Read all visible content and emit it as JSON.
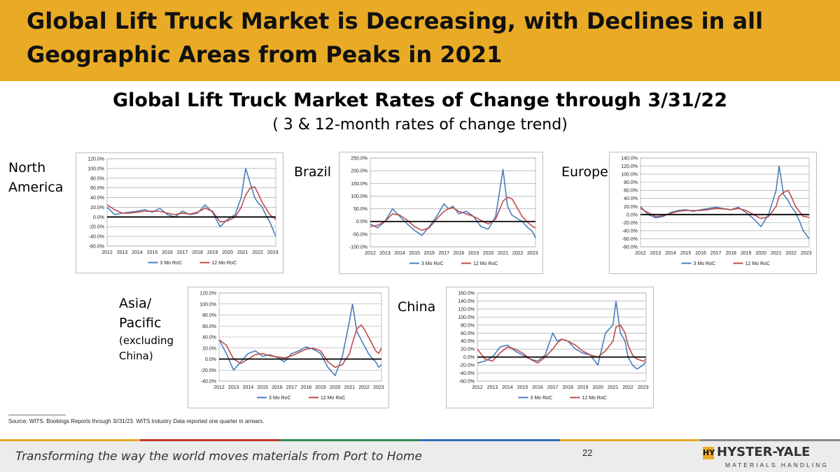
{
  "header": {
    "title": "Global Lift Truck Market is Decreasing, with Declines in all Geographic Areas from Peaks in 2021"
  },
  "subtitle": "Global Lift Truck Market Rates of Change through 3/31/22",
  "subtitle2": "( 3 & 12-month rates of change trend)",
  "regions": {
    "north_america": "North America",
    "brazil": "Brazil",
    "europe": "Europe",
    "asia_line1": "Asia/",
    "asia_line2": "Pacific",
    "asia_line3": "(excluding",
    "asia_line4": "China)",
    "china": "China"
  },
  "source": "Source: WITS. Bookings Reports through 3//31/23. WITS Industry Data reported one quarter in arrears.",
  "footer": {
    "tagline": "Transforming the way the world moves materials from Port to Home",
    "page_number": "22",
    "logo_mark": "HY",
    "logo_name": "HYSTER-YALE",
    "logo_sub": "MATERIALS HANDLING"
  },
  "colors": {
    "header_bg": "#E9AB26",
    "series_3mo": "#4A7EBB",
    "series_12mo": "#BE4B48",
    "zero_line": "#000000",
    "footer_stripe": [
      "#E9AB26",
      "#C0392B",
      "#2E8B57",
      "#2F6DB5",
      "#E9AB26",
      "#888888"
    ]
  },
  "chart_data": [
    {
      "id": "north_america",
      "type": "line",
      "x": [
        2012,
        2012.5,
        2013,
        2013.5,
        2014,
        2014.5,
        2015,
        2015.5,
        2016,
        2016.5,
        2017,
        2017.5,
        2018,
        2018.5,
        2019,
        2019.5,
        2020,
        2020.5,
        2020.9,
        2021.2,
        2021.5,
        2021.8,
        2022,
        2022.3,
        2022.6,
        2022.8,
        2023,
        2023.2
      ],
      "series": [
        {
          "name": "3 Mo RoC",
          "values": [
            20,
            5,
            8,
            10,
            12,
            15,
            10,
            18,
            5,
            0,
            12,
            5,
            8,
            25,
            10,
            -20,
            -5,
            5,
            40,
            100,
            70,
            40,
            30,
            20,
            0,
            -10,
            -25,
            -40
          ]
        },
        {
          "name": "12 Mo RoC",
          "values": [
            25,
            15,
            8,
            8,
            10,
            12,
            12,
            12,
            8,
            5,
            8,
            6,
            10,
            18,
            12,
            -10,
            -8,
            0,
            20,
            45,
            60,
            62,
            50,
            30,
            15,
            5,
            0,
            -5
          ]
        }
      ],
      "x_ticks": [
        "2012",
        "2013",
        "2014",
        "2015",
        "2016",
        "2017",
        "2018",
        "2019",
        "2020",
        "2021",
        "2022",
        "2023"
      ],
      "y_ticks": [
        "120.0%",
        "100.0%",
        "80.0%",
        "60.0%",
        "40.0%",
        "20.0%",
        "0.0%",
        "-20.0%",
        "-40.0%",
        "-60.0%"
      ],
      "ylim": [
        -60,
        120
      ],
      "legend": [
        "3 Mo RoC",
        "12 Mo RoC"
      ]
    },
    {
      "id": "brazil",
      "type": "line",
      "x": [
        2012,
        2012.5,
        2013,
        2013.5,
        2014,
        2014.5,
        2015,
        2015.5,
        2016,
        2016.5,
        2017,
        2017.3,
        2017.6,
        2018,
        2018.5,
        2019,
        2019.5,
        2020,
        2020.5,
        2021,
        2021.3,
        2021.6,
        2022,
        2022.3,
        2022.6,
        2022.8,
        2023,
        2023.2
      ],
      "series": [
        {
          "name": "3 Mo RoC",
          "values": [
            -10,
            -25,
            0,
            50,
            20,
            -10,
            -35,
            -55,
            -20,
            20,
            70,
            50,
            60,
            30,
            40,
            20,
            -20,
            -30,
            20,
            205,
            60,
            25,
            10,
            0,
            -20,
            -30,
            -40,
            -65
          ]
        },
        {
          "name": "12 Mo RoC",
          "values": [
            -20,
            -15,
            0,
            30,
            25,
            5,
            -20,
            -35,
            -25,
            10,
            40,
            50,
            55,
            40,
            30,
            20,
            5,
            -10,
            10,
            80,
            95,
            90,
            50,
            20,
            0,
            -10,
            -20,
            -25
          ]
        }
      ],
      "x_ticks": [
        "2012",
        "2013",
        "2014",
        "2015",
        "2016",
        "2017",
        "2018",
        "2019",
        "2020",
        "2021",
        "2022",
        "2023"
      ],
      "y_ticks": [
        "250.0%",
        "200.0%",
        "150.0%",
        "100.0%",
        "50.0%",
        "0.0%",
        "-50.0%",
        "-100.0%"
      ],
      "ylim": [
        -100,
        250
      ],
      "legend": [
        "3 Mo RoC",
        "12 Mo RoC"
      ]
    },
    {
      "id": "europe",
      "type": "line",
      "x": [
        2012,
        2012.5,
        2013,
        2013.5,
        2014,
        2014.5,
        2015,
        2015.5,
        2016,
        2016.5,
        2017,
        2017.5,
        2018,
        2018.5,
        2019,
        2019.5,
        2020,
        2020.5,
        2021,
        2021.2,
        2021.5,
        2021.8,
        2022,
        2022.3,
        2022.6,
        2022.8,
        2023,
        2023.2
      ],
      "series": [
        {
          "name": "3 Mo RoC",
          "values": [
            20,
            0,
            -8,
            -5,
            5,
            10,
            12,
            8,
            12,
            15,
            18,
            15,
            12,
            18,
            5,
            -10,
            -30,
            0,
            60,
            120,
            50,
            35,
            20,
            5,
            -20,
            -40,
            -50,
            -60
          ]
        },
        {
          "name": "12 Mo RoC",
          "values": [
            15,
            5,
            -5,
            -3,
            3,
            8,
            10,
            10,
            10,
            12,
            15,
            14,
            12,
            15,
            10,
            0,
            -10,
            -5,
            20,
            45,
            55,
            60,
            45,
            20,
            5,
            -5,
            -5,
            -8
          ]
        }
      ],
      "x_ticks": [
        "2012",
        "2013",
        "2014",
        "2015",
        "2016",
        "2017",
        "2018",
        "2019",
        "2020",
        "2021",
        "2022",
        "2023"
      ],
      "y_ticks": [
        "140.0%",
        "120.0%",
        "100.0%",
        "80.0%",
        "60.0%",
        "40.0%",
        "20.0%",
        "0.0%",
        "-20.0%",
        "-40.0%",
        "-60.0%",
        "-80.0%"
      ],
      "ylim": [
        -80,
        140
      ],
      "legend": [
        "3 Mo RoC",
        "12 Mo RoC"
      ]
    },
    {
      "id": "asia_pacific",
      "type": "line",
      "x": [
        2012,
        2012.5,
        2013,
        2013.5,
        2014,
        2014.5,
        2015,
        2015.5,
        2016,
        2016.5,
        2017,
        2017.5,
        2018,
        2018.5,
        2019,
        2019.5,
        2020,
        2020.5,
        2021,
        2021.2,
        2021.5,
        2021.8,
        2022,
        2022.3,
        2022.6,
        2022.8,
        2023,
        2023.2
      ],
      "series": [
        {
          "name": "3 Mo RoC",
          "values": [
            35,
            10,
            -20,
            -5,
            10,
            15,
            5,
            8,
            3,
            -5,
            10,
            15,
            22,
            18,
            10,
            -15,
            -30,
            5,
            70,
            100,
            50,
            35,
            25,
            10,
            0,
            -5,
            -15,
            -10
          ]
        },
        {
          "name": "12 Mo RoC",
          "values": [
            35,
            25,
            0,
            -8,
            0,
            8,
            10,
            6,
            4,
            2,
            6,
            12,
            18,
            20,
            15,
            -5,
            -15,
            -10,
            10,
            30,
            55,
            62,
            55,
            40,
            25,
            15,
            10,
            20
          ]
        }
      ],
      "x_ticks": [
        "2012",
        "2013",
        "2014",
        "2015",
        "2016",
        "2017",
        "2018",
        "2019",
        "2020",
        "2021",
        "2022",
        "2023"
      ],
      "y_ticks": [
        "120.0%",
        "100.0%",
        "80.0%",
        "60.0%",
        "40.0%",
        "20.0%",
        "0.0%",
        "-20.0%",
        "-40.0%"
      ],
      "ylim": [
        -40,
        120
      ],
      "legend": [
        "3 Mo RoC",
        "12 Mo RoC"
      ]
    },
    {
      "id": "china",
      "type": "line",
      "x": [
        2012,
        2012.5,
        2013,
        2013.5,
        2014,
        2014.5,
        2015,
        2015.5,
        2016,
        2016.5,
        2017,
        2017.3,
        2017.6,
        2018,
        2018.5,
        2019,
        2019.5,
        2020,
        2020.5,
        2021,
        2021.2,
        2021.5,
        2021.8,
        2022,
        2022.3,
        2022.6,
        2023,
        2023.2
      ],
      "series": [
        {
          "name": "3 Mo RoC",
          "values": [
            -15,
            -10,
            0,
            25,
            30,
            15,
            5,
            -5,
            -10,
            5,
            60,
            40,
            45,
            40,
            20,
            10,
            5,
            -20,
            60,
            80,
            140,
            60,
            40,
            0,
            -20,
            -30,
            -20,
            -10
          ]
        },
        {
          "name": "12 Mo RoC",
          "values": [
            20,
            -5,
            -10,
            10,
            25,
            20,
            10,
            -5,
            -15,
            0,
            20,
            35,
            45,
            40,
            30,
            15,
            5,
            0,
            15,
            40,
            75,
            80,
            60,
            30,
            5,
            -5,
            -10,
            -5
          ]
        }
      ],
      "x_ticks": [
        "2012",
        "2013",
        "2014",
        "2015",
        "2016",
        "2017",
        "2018",
        "2019",
        "2020",
        "2021",
        "2022",
        "2023"
      ],
      "y_ticks": [
        "160.0%",
        "140.0%",
        "120.0%",
        "100.0%",
        "80.0%",
        "60.0%",
        "40.0%",
        "20.0%",
        "0.0%",
        "-20.0%",
        "-40.0%",
        "-60.0%"
      ],
      "ylim": [
        -60,
        160
      ],
      "legend": [
        "3 Mo RoC",
        "12 Mo RoC"
      ]
    }
  ]
}
